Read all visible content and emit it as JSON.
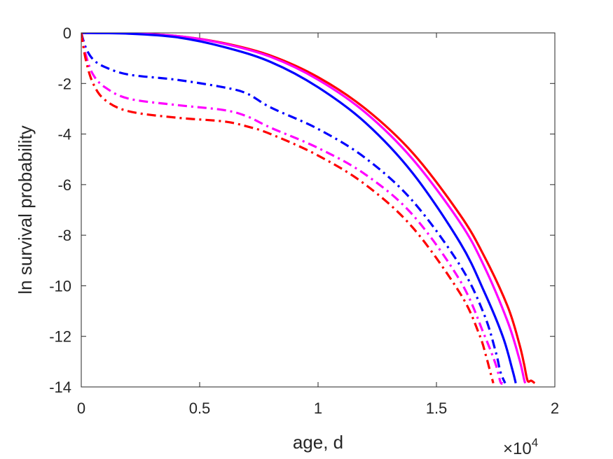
{
  "chart_data": {
    "type": "line",
    "title": "",
    "xlabel": "age, d",
    "ylabel": "ln survival probability",
    "x_multiplier": {
      "base": "×10",
      "exponent": "4"
    },
    "xlim": [
      0,
      20000
    ],
    "ylim": [
      -14,
      0
    ],
    "xticks": [
      0,
      5000,
      10000,
      15000,
      20000
    ],
    "xtick_labels": [
      "0",
      "0.5",
      "1",
      "1.5",
      "2"
    ],
    "yticks": [
      0,
      -2,
      -4,
      -6,
      -8,
      -10,
      -12,
      -14
    ],
    "ytick_labels": [
      "0",
      "-2",
      "-4",
      "-6",
      "-8",
      "-10",
      "-12",
      "-14"
    ],
    "grid": false,
    "series": [
      {
        "color": "#ff0000",
        "style": "solid",
        "x": [
          0,
          2000,
          4000,
          6000,
          8000,
          10000,
          12000,
          14000,
          16000,
          17000,
          18000,
          18500,
          18700,
          18850,
          19000,
          19150
        ],
        "y": [
          0,
          -0.02,
          -0.12,
          -0.4,
          -0.9,
          -1.75,
          -3.0,
          -4.75,
          -7.2,
          -8.8,
          -10.8,
          -12.3,
          -13.1,
          -13.75,
          -13.75,
          -13.85
        ]
      },
      {
        "color": "#ff00ff",
        "style": "solid",
        "x": [
          0,
          2000,
          4000,
          6000,
          8000,
          10000,
          12000,
          14000,
          16000,
          17000,
          18000,
          18500,
          18700,
          18750
        ],
        "y": [
          0,
          -0.02,
          -0.12,
          -0.42,
          -0.95,
          -1.85,
          -3.15,
          -5.0,
          -7.5,
          -9.2,
          -11.4,
          -12.9,
          -13.7,
          -13.85
        ]
      },
      {
        "color": "#0000ff",
        "style": "solid",
        "x": [
          0,
          2000,
          4000,
          6000,
          8000,
          10000,
          12000,
          14000,
          16000,
          17000,
          17800,
          18200,
          18350
        ],
        "y": [
          0,
          -0.03,
          -0.17,
          -0.55,
          -1.15,
          -2.15,
          -3.55,
          -5.55,
          -8.3,
          -10.2,
          -12.0,
          -13.3,
          -13.85
        ]
      },
      {
        "color": "#0000ff",
        "style": "dashdot",
        "x": [
          0,
          200,
          500,
          1000,
          2000,
          4000,
          6000,
          7000,
          8000,
          10000,
          12000,
          14000,
          16000,
          17000,
          17500,
          17700,
          17900
        ],
        "y": [
          0,
          -0.6,
          -1.05,
          -1.35,
          -1.65,
          -1.85,
          -2.15,
          -2.4,
          -2.95,
          -3.8,
          -4.95,
          -6.65,
          -9.2,
          -11.1,
          -12.6,
          -13.4,
          -13.85
        ]
      },
      {
        "color": "#ff00ff",
        "style": "dashdot",
        "x": [
          0,
          200,
          500,
          1000,
          2000,
          4000,
          6000,
          7000,
          8000,
          10000,
          12000,
          14000,
          16000,
          17000,
          17500,
          17700,
          17800
        ],
        "y": [
          0,
          -0.9,
          -1.65,
          -2.15,
          -2.6,
          -2.85,
          -3.05,
          -3.3,
          -3.75,
          -4.55,
          -5.6,
          -7.2,
          -9.8,
          -11.9,
          -13.1,
          -13.8,
          -13.85
        ]
      },
      {
        "color": "#ff0000",
        "style": "dashdot",
        "x": [
          0,
          200,
          500,
          1000,
          2000,
          4000,
          6000,
          7000,
          8000,
          10000,
          12000,
          14000,
          16000,
          16800,
          17100,
          17300,
          17400
        ],
        "y": [
          0,
          -1.1,
          -2.0,
          -2.65,
          -3.1,
          -3.35,
          -3.5,
          -3.7,
          -4.0,
          -4.85,
          -6.0,
          -7.7,
          -10.3,
          -11.9,
          -12.8,
          -13.5,
          -13.85
        ]
      }
    ]
  }
}
